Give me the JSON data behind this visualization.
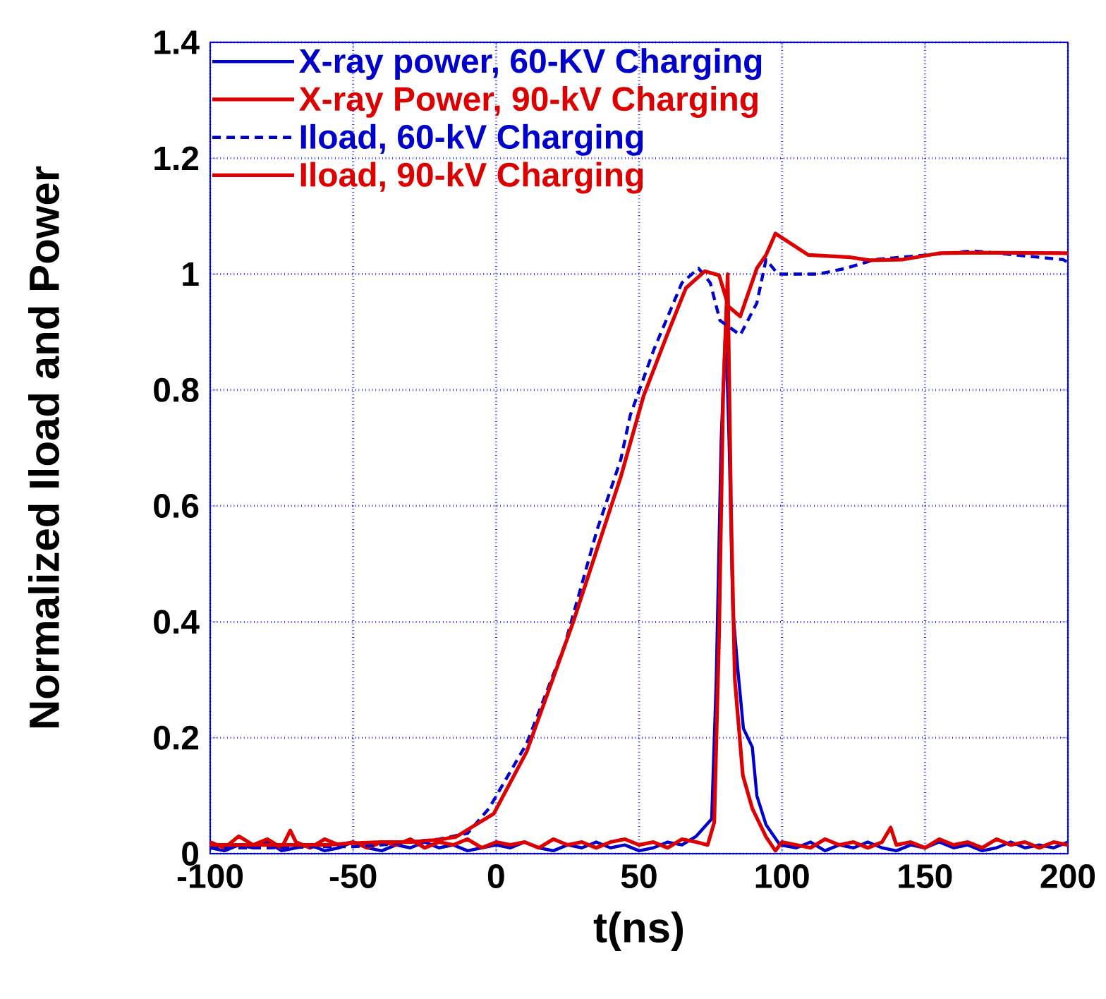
{
  "chart_data": {
    "type": "line",
    "xlabel": "t(ns)",
    "ylabel": "Normalized Iload and Power",
    "xlim": [
      -100,
      200
    ],
    "ylim": [
      0,
      1.4
    ],
    "xticks": [
      -100,
      -50,
      0,
      50,
      100,
      150,
      200
    ],
    "yticks": [
      0,
      0.2,
      0.4,
      0.6,
      0.8,
      1,
      1.2,
      1.4
    ],
    "grid": true,
    "legend": "top left",
    "series": [
      {
        "name": "X-ray power, 60-KV Charging",
        "color": "#0000cc",
        "line_style": "solid",
        "x": [
          -100,
          -95,
          -90,
          -85,
          -80,
          -75,
          -70,
          -65,
          -60,
          -55,
          -50,
          -45,
          -40,
          -35,
          -30,
          -25,
          -20,
          -15,
          -10,
          -5,
          0,
          5,
          10,
          15,
          20,
          25,
          30,
          35,
          40,
          45,
          50,
          55,
          60,
          65,
          70,
          75.4,
          77,
          78.7,
          80.3,
          81.5,
          82.8,
          84.5,
          86.5,
          89.6,
          91.2,
          94.4,
          99.3,
          105,
          110,
          115,
          120,
          125,
          130,
          135,
          140,
          145,
          150,
          155,
          160,
          165,
          170,
          175,
          180,
          185,
          190,
          195,
          200
        ],
        "values": [
          0.01,
          0.005,
          0.015,
          0.01,
          0.02,
          0.005,
          0.01,
          0.015,
          0.005,
          0.01,
          0.02,
          0.01,
          0.005,
          0.015,
          0.01,
          0.02,
          0.01,
          0.015,
          0.005,
          0.01,
          0.015,
          0.01,
          0.02,
          0.01,
          0.005,
          0.015,
          0.01,
          0.02,
          0.01,
          0.015,
          0.005,
          0.01,
          0.02,
          0.015,
          0.03,
          0.06,
          0.3,
          0.71,
          0.91,
          0.71,
          0.42,
          0.32,
          0.216,
          0.184,
          0.1,
          0.05,
          0.015,
          0.01,
          0.02,
          0.005,
          0.015,
          0.01,
          0.02,
          0.01,
          0.005,
          0.015,
          0.01,
          0.02,
          0.01,
          0.015,
          0.005,
          0.01,
          0.02,
          0.01,
          0.015,
          0.01,
          0.02
        ]
      },
      {
        "name": "X-ray Power, 90-kV Charging",
        "color": "#dd0000",
        "line_style": "solid",
        "x": [
          -100,
          -95,
          -90,
          -85,
          -80,
          -75,
          -72,
          -70,
          -65,
          -60,
          -55,
          -50,
          -45,
          -40,
          -35,
          -30,
          -25,
          -20,
          -15,
          -10,
          -5,
          0,
          5,
          10,
          15,
          20,
          25,
          30,
          35,
          40,
          45,
          50,
          55,
          60,
          65,
          70,
          74,
          76.3,
          78,
          79.4,
          81,
          82.2,
          83.5,
          86.3,
          89.6,
          94.4,
          97.7,
          100,
          105,
          110,
          115,
          120,
          125,
          130,
          135,
          138,
          140,
          145,
          150,
          155,
          160,
          165,
          170,
          175,
          180,
          185,
          190,
          195,
          200
        ],
        "values": [
          0.02,
          0.01,
          0.03,
          0.015,
          0.025,
          0.01,
          0.04,
          0.02,
          0.01,
          0.025,
          0.015,
          0.02,
          0.01,
          0.02,
          0.015,
          0.025,
          0.01,
          0.02,
          0.015,
          0.025,
          0.01,
          0.02,
          0.015,
          0.02,
          0.01,
          0.025,
          0.015,
          0.02,
          0.01,
          0.02,
          0.025,
          0.015,
          0.02,
          0.01,
          0.025,
          0.02,
          0.015,
          0.054,
          0.38,
          0.79,
          1.0,
          0.584,
          0.3,
          0.135,
          0.078,
          0.029,
          0.005,
          0.02,
          0.015,
          0.01,
          0.025,
          0.015,
          0.02,
          0.01,
          0.02,
          0.045,
          0.015,
          0.02,
          0.01,
          0.025,
          0.015,
          0.02,
          0.01,
          0.025,
          0.015,
          0.02,
          0.01,
          0.02,
          0.015
        ]
      },
      {
        "name": "Iload, 60-kV Charging",
        "color": "#0000cc",
        "line_style": "dashed",
        "x": [
          -100,
          -80,
          -60,
          -50,
          -40,
          -30,
          -20,
          -10,
          -2.5,
          10.7,
          24,
          35.4,
          43.6,
          46.9,
          55.2,
          65,
          70.8,
          74.9,
          78.3,
          85.4,
          91.2,
          94.4,
          98.6,
          112.6,
          122.4,
          132.3,
          150.4,
          167,
          198.4,
          200
        ],
        "values": [
          0.01,
          0.01,
          0.012,
          0.012,
          0.015,
          0.02,
          0.025,
          0.035,
          0.078,
          0.19,
          0.36,
          0.56,
          0.68,
          0.756,
          0.87,
          0.985,
          1.01,
          0.985,
          0.92,
          0.895,
          0.95,
          1.025,
          1.0,
          1.0,
          1.01,
          1.025,
          1.033,
          1.04,
          1.025,
          1.02
        ]
      },
      {
        "name": "Iload, 90-kV Charging",
        "color": "#dd0000",
        "line_style": "solid",
        "x": [
          -100,
          -80,
          -60,
          -50,
          -40,
          -30.5,
          -20,
          -14,
          -0.8,
          10.7,
          19,
          27,
          35.4,
          43.6,
          51.6,
          59.8,
          66.4,
          73,
          78,
          81.3,
          85.4,
          87,
          91.2,
          94.4,
          97.7,
          109.2,
          124,
          130.6,
          142,
          155,
          167,
          200
        ],
        "values": [
          0.015,
          0.015,
          0.015,
          0.018,
          0.02,
          0.02,
          0.024,
          0.029,
          0.069,
          0.176,
          0.29,
          0.4,
          0.527,
          0.65,
          0.79,
          0.895,
          0.976,
          1.005,
          0.998,
          0.944,
          0.927,
          0.95,
          1.01,
          1.033,
          1.07,
          1.033,
          1.029,
          1.024,
          1.025,
          1.036,
          1.037,
          1.036
        ]
      }
    ]
  }
}
